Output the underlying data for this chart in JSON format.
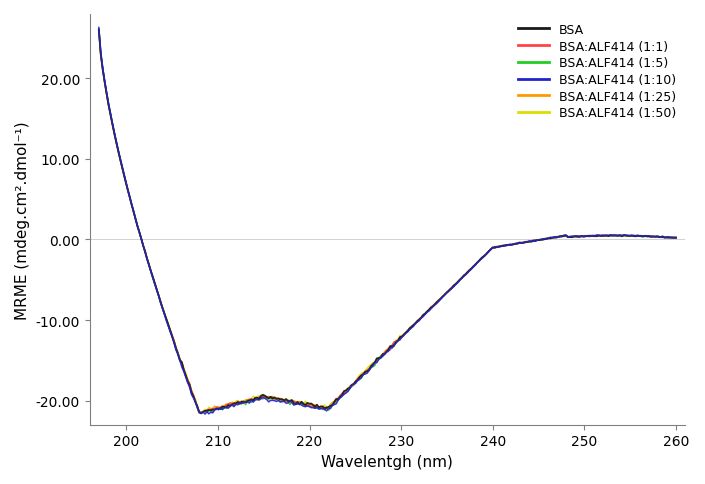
{
  "title": "",
  "xlabel": "Wavelentgh (nm)",
  "ylabel": "MRME (mdeg.cm².dmol⁻¹)",
  "xlim": [
    196,
    261
  ],
  "ylim": [
    -23,
    28
  ],
  "xticks": [
    200,
    210,
    220,
    230,
    240,
    250,
    260
  ],
  "yticks": [
    -20.0,
    -10.0,
    0.0,
    10.0,
    20.0
  ],
  "series": [
    {
      "label": "BSA",
      "color": "#1a1a1a",
      "lw": 1.3,
      "zorder": 6
    },
    {
      "label": "BSA:ALF414 (1:1)",
      "color": "#ff4444",
      "lw": 1.1,
      "zorder": 5
    },
    {
      "label": "BSA:ALF414 (1:5)",
      "color": "#22cc22",
      "lw": 1.2,
      "zorder": 4
    },
    {
      "label": "BSA:ALF414 (1:10)",
      "color": "#2222cc",
      "lw": 1.1,
      "zorder": 7
    },
    {
      "label": "BSA:ALF414 (1:25)",
      "color": "#ff9900",
      "lw": 1.1,
      "zorder": 3
    },
    {
      "label": "BSA:ALF414 (1:50)",
      "color": "#dddd00",
      "lw": 1.1,
      "zorder": 2
    }
  ],
  "background_color": "#ffffff",
  "legend_fontsize": 9,
  "axis_fontsize": 11,
  "tick_fontsize": 10
}
